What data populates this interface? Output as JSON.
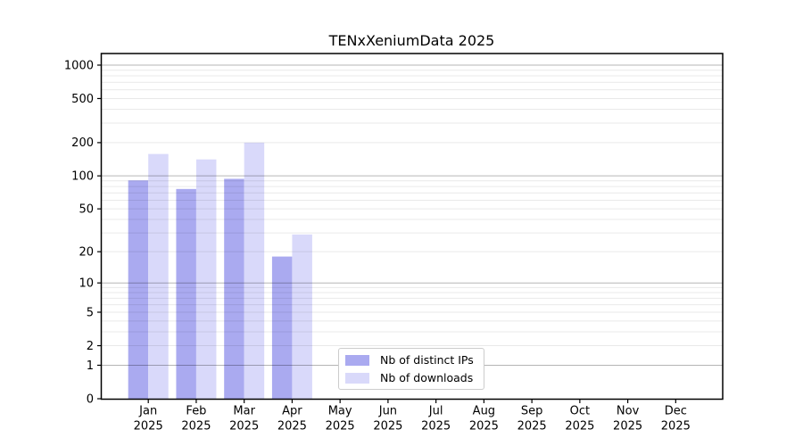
{
  "chart_data": {
    "type": "bar",
    "title": "TENxXeniumData 2025",
    "y_scale": "log1p",
    "ylim": [
      0,
      1270
    ],
    "y_ticks": [
      0,
      1,
      2,
      5,
      10,
      20,
      50,
      100,
      200,
      500,
      1000
    ],
    "grid": "horizontal",
    "legend_position": "lower center",
    "categories": [
      "Jan",
      "Feb",
      "Mar",
      "Apr",
      "May",
      "Jun",
      "Jul",
      "Aug",
      "Sep",
      "Oct",
      "Nov",
      "Dec"
    ],
    "x_sublabel": "2025",
    "series": [
      {
        "name": "Nb of distinct IPs",
        "color": "#aaaaf0",
        "values": [
          91,
          76,
          94,
          18,
          0,
          0,
          0,
          0,
          0,
          0,
          0,
          0
        ]
      },
      {
        "name": "Nb of downloads",
        "color": "#d9d9fa",
        "values": [
          158,
          141,
          200,
          29,
          0,
          0,
          0,
          0,
          0,
          0,
          0,
          0
        ]
      }
    ],
    "colors": {
      "major_grid": "rgba(0,0,0,0.29)",
      "minor_grid": "rgba(0,0,0,0.085)",
      "axis": "#000000",
      "text": "#000000",
      "background": "#ffffff",
      "legend_border": "#cccccc"
    }
  }
}
